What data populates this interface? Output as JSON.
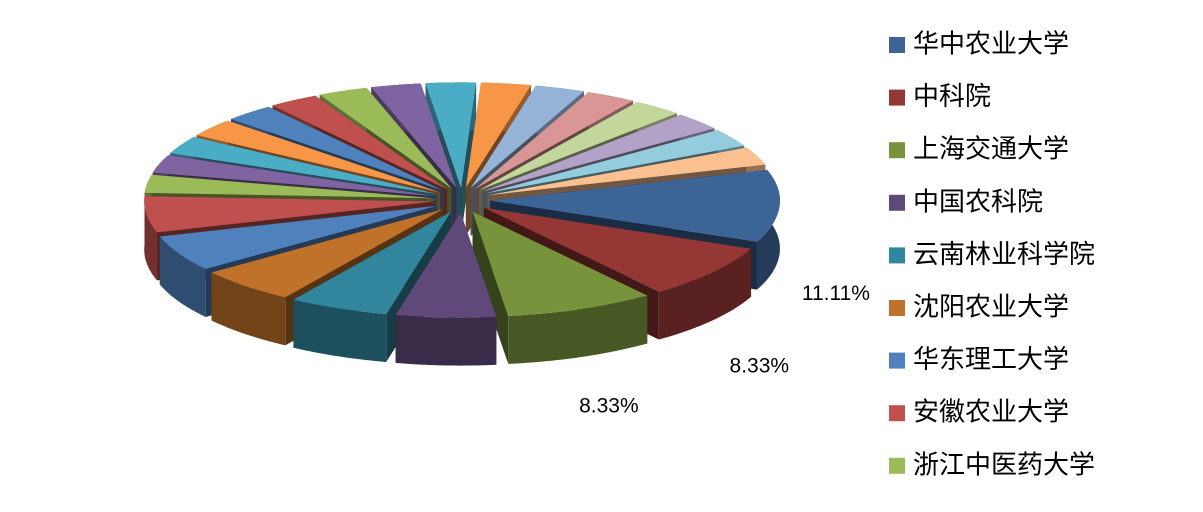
{
  "chart_data": {
    "type": "pie",
    "categories": [
      "华中农业大学",
      "中科院",
      "上海交通大学",
      "中国农科院",
      "云南林业科学院",
      "沈阳农业大学",
      "华东理工大学",
      "安徽农业大学",
      "浙江中医药大学",
      null,
      null,
      null,
      null,
      null,
      null,
      null,
      null,
      null,
      null,
      null,
      null,
      null,
      null,
      null
    ],
    "values": [
      11.11,
      8.33,
      8.33,
      5.56,
      5.56,
      5.56,
      5.56,
      5.56,
      2.78,
      2.78,
      2.78,
      2.78,
      2.78,
      2.78,
      2.78,
      2.78,
      2.78,
      2.78,
      2.78,
      2.78,
      2.78,
      2.78,
      2.78,
      2.78
    ],
    "value_labels": [
      "11.11%",
      "8.33%",
      "8.33%",
      null,
      null,
      null,
      null,
      null,
      null,
      null,
      null,
      null,
      null,
      null,
      null,
      null,
      null,
      null,
      null,
      null,
      null,
      null,
      null,
      null
    ],
    "colors": [
      "#3c6496",
      "#953735",
      "#77933c",
      "#5f497a",
      "#31859c",
      "#c0712a",
      "#4f81bd",
      "#c0504d",
      "#9bbb59",
      "#8064a2",
      "#4bacc6",
      "#f79646",
      "#4f81bd",
      "#c0504d",
      "#9bbb59",
      "#8064a2",
      "#4bacc6",
      "#f79646",
      "#95b3d7",
      "#d99694",
      "#c3d69b",
      "#b3a2c7",
      "#93cddd",
      "#fac090"
    ]
  }
}
